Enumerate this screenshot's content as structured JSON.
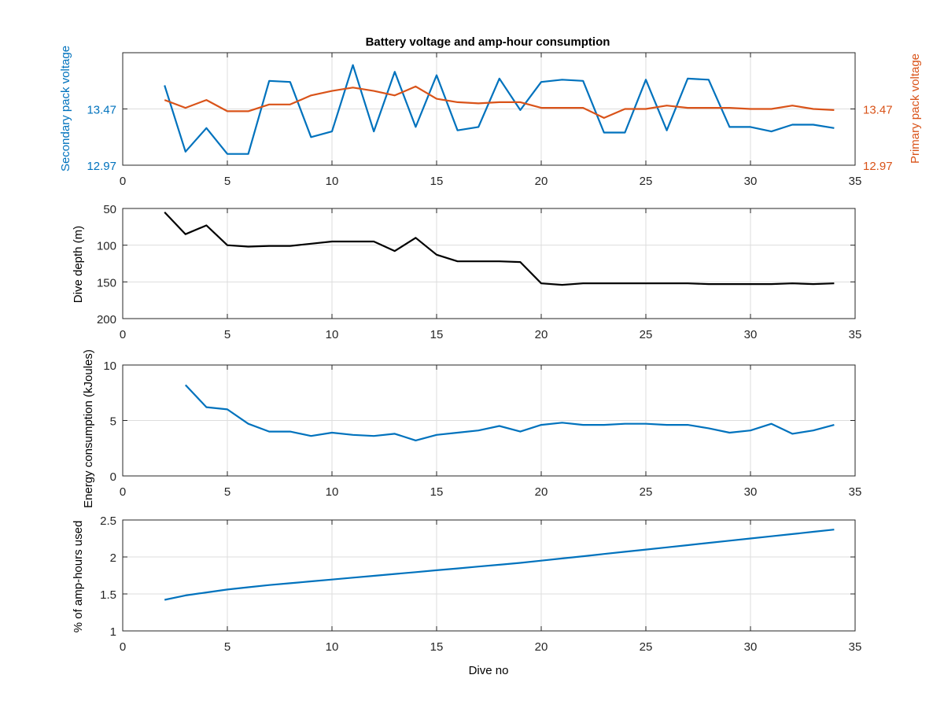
{
  "title": "Battery voltage and amp-hour consumption",
  "colors": {
    "blue": "#0072bd",
    "orange": "#d95319",
    "black": "#000000",
    "grid": "#dddddd"
  },
  "chart_data": [
    {
      "type": "line",
      "title": "Battery voltage and amp-hour consumption",
      "xlabel": "",
      "ylabel_left": "Secondary pack voltage",
      "ylabel_right": "Primary pack voltage",
      "xlim": [
        0,
        35
      ],
      "ylim_left": [
        12.97,
        13.97
      ],
      "ylim_right": [
        12.97,
        13.97
      ],
      "x_ticks": [
        "0",
        "5",
        "10",
        "15",
        "20",
        "25",
        "30",
        "35"
      ],
      "y_ticks_left": [
        "12.97",
        "13.47"
      ],
      "y_ticks_right": [
        "12.97",
        "13.47"
      ],
      "grid": true,
      "series": [
        {
          "axis": "left",
          "x": [
            2,
            3,
            4,
            5,
            6,
            7,
            8,
            9,
            10,
            11,
            12,
            13,
            14,
            15,
            16,
            17,
            18,
            19,
            20,
            21,
            22,
            23,
            24,
            25,
            26,
            27,
            28,
            29,
            30,
            31,
            32,
            33,
            34
          ],
          "values": [
            13.68,
            13.09,
            13.3,
            13.07,
            13.07,
            13.72,
            13.71,
            13.22,
            13.27,
            13.86,
            13.27,
            13.8,
            13.31,
            13.77,
            13.28,
            13.31,
            13.74,
            13.46,
            13.71,
            13.73,
            13.72,
            13.26,
            13.26,
            13.73,
            13.28,
            13.74,
            13.73,
            13.31,
            13.31,
            13.27,
            13.33,
            13.33,
            13.3
          ]
        },
        {
          "axis": "right",
          "x": [
            2,
            3,
            4,
            5,
            6,
            7,
            8,
            9,
            10,
            11,
            12,
            13,
            14,
            15,
            16,
            17,
            18,
            19,
            20,
            21,
            22,
            23,
            24,
            25,
            26,
            27,
            28,
            29,
            30,
            31,
            32,
            33,
            34
          ],
          "values": [
            13.55,
            13.48,
            13.55,
            13.45,
            13.45,
            13.51,
            13.51,
            13.59,
            13.63,
            13.66,
            13.63,
            13.59,
            13.67,
            13.56,
            13.53,
            13.52,
            13.53,
            13.53,
            13.48,
            13.48,
            13.48,
            13.39,
            13.47,
            13.47,
            13.5,
            13.48,
            13.48,
            13.48,
            13.47,
            13.47,
            13.5,
            13.47,
            13.46
          ]
        }
      ]
    },
    {
      "type": "line",
      "xlabel": "",
      "ylabel": "Dive depth (m)",
      "xlim": [
        0,
        35
      ],
      "ylim": [
        50,
        200
      ],
      "y_reversed": true,
      "x_ticks": [
        "0",
        "5",
        "10",
        "15",
        "20",
        "25",
        "30",
        "35"
      ],
      "y_ticks": [
        "50",
        "100",
        "150",
        "200"
      ],
      "grid": true,
      "series": [
        {
          "x": [
            2,
            3,
            4,
            5,
            6,
            7,
            8,
            9,
            10,
            11,
            12,
            13,
            14,
            15,
            16,
            17,
            18,
            19,
            20,
            21,
            22,
            23,
            24,
            25,
            26,
            27,
            28,
            29,
            30,
            31,
            32,
            33,
            34
          ],
          "values": [
            55,
            85,
            73,
            100,
            102,
            101,
            101,
            98,
            95,
            95,
            95,
            108,
            90,
            113,
            122,
            122,
            122,
            123,
            152,
            154,
            152,
            152,
            152,
            152,
            152,
            152,
            153,
            153,
            153,
            153,
            152,
            153,
            152
          ]
        }
      ]
    },
    {
      "type": "line",
      "xlabel": "",
      "ylabel": "Energy consumption (kJoules)",
      "xlim": [
        0,
        35
      ],
      "ylim": [
        0,
        10
      ],
      "x_ticks": [
        "0",
        "5",
        "10",
        "15",
        "20",
        "25",
        "30",
        "35"
      ],
      "y_ticks": [
        "0",
        "5",
        "10"
      ],
      "grid": true,
      "series": [
        {
          "x": [
            3,
            4,
            5,
            6,
            7,
            8,
            9,
            10,
            11,
            12,
            13,
            14,
            15,
            16,
            17,
            18,
            19,
            20,
            21,
            22,
            23,
            24,
            25,
            26,
            27,
            28,
            29,
            30,
            31,
            32,
            33,
            34
          ],
          "values": [
            8.2,
            6.2,
            6.0,
            4.7,
            4.0,
            4.0,
            3.6,
            3.9,
            3.7,
            3.6,
            3.8,
            3.2,
            3.7,
            3.9,
            4.1,
            4.5,
            4.0,
            4.6,
            4.8,
            4.6,
            4.6,
            4.7,
            4.7,
            4.6,
            4.6,
            4.3,
            3.9,
            4.1,
            4.7,
            3.8,
            4.1,
            4.6
          ]
        }
      ]
    },
    {
      "type": "line",
      "xlabel": "Dive no",
      "ylabel": "% of amp-hours used",
      "xlim": [
        0,
        35
      ],
      "ylim": [
        1,
        2.5
      ],
      "x_ticks": [
        "0",
        "5",
        "10",
        "15",
        "20",
        "25",
        "30",
        "35"
      ],
      "y_ticks": [
        "1",
        "1.5",
        "2",
        "2.5"
      ],
      "grid": true,
      "series": [
        {
          "x": [
            2,
            3,
            4,
            5,
            6,
            7,
            8,
            9,
            10,
            11,
            12,
            13,
            14,
            15,
            16,
            17,
            18,
            19,
            20,
            21,
            22,
            23,
            24,
            25,
            26,
            27,
            28,
            29,
            30,
            31,
            32,
            33,
            34
          ],
          "values": [
            1.42,
            1.48,
            1.52,
            1.56,
            1.59,
            1.62,
            1.645,
            1.67,
            1.695,
            1.72,
            1.745,
            1.77,
            1.795,
            1.82,
            1.845,
            1.87,
            1.895,
            1.92,
            1.95,
            1.98,
            2.01,
            2.04,
            2.07,
            2.1,
            2.13,
            2.16,
            2.19,
            2.22,
            2.25,
            2.28,
            2.31,
            2.34,
            2.37
          ]
        }
      ]
    }
  ]
}
